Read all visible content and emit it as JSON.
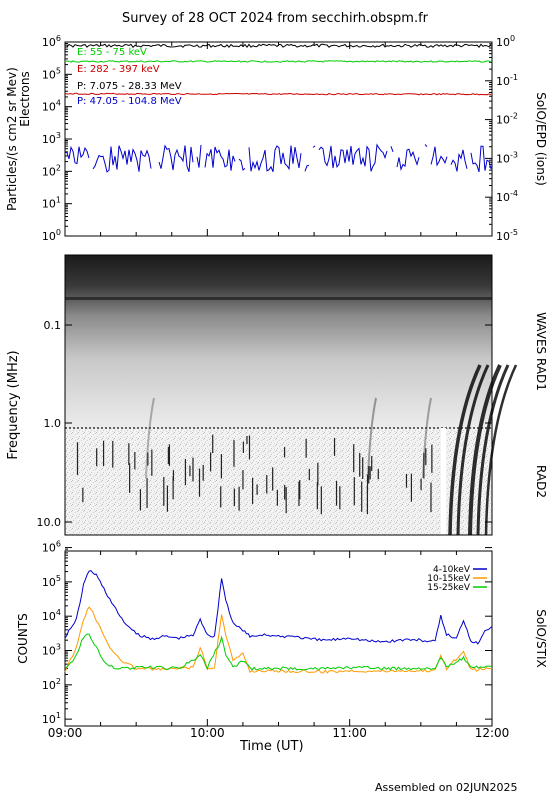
{
  "header": {
    "title": "Survey of 28 OCT 2024 from secchirh.obspm.fr"
  },
  "footer": {
    "assembled": "Assembled on 02JUN2025"
  },
  "x_axis": {
    "label": "Time (UT)",
    "ticks": [
      "09:00",
      "10:00",
      "11:00",
      "12:00"
    ],
    "range_hours": [
      9,
      12
    ]
  },
  "chart_data": [
    {
      "type": "line",
      "name": "particles",
      "ylabel": "Particles/(s cm2 sr Mev)",
      "ylabel2": "Electrons",
      "right_label": "SolO/EPD (ions)",
      "y_scale": "log",
      "ylim": [
        1,
        1000000
      ],
      "y_ticks": [
        "10^0",
        "10^1",
        "10^2",
        "10^3",
        "10^4",
        "10^5",
        "10^6"
      ],
      "y2_scale": "log",
      "y2lim": [
        1e-05,
        1
      ],
      "y2_ticks": [
        "10^-5",
        "10^-4",
        "10^-3",
        "10^-2",
        "10^-1",
        "10^0"
      ],
      "series": [
        {
          "name": "E: 55 - 75 keV",
          "color": "#00cc00",
          "values_approx": 250000
        },
        {
          "name": "E: 282 - 397 keV",
          "color": "#cc0000",
          "values_approx": 25000
        },
        {
          "name": "P: 7.075 - 28.33 MeV",
          "color": "#000000",
          "axis": "right",
          "values_approx": 0.8
        },
        {
          "name": "P: 47.05 - 104.8 MeV",
          "color": "#0000cc",
          "axis": "right",
          "values_approx": 0.001
        }
      ]
    },
    {
      "type": "heatmap",
      "name": "radio-spectrogram",
      "ylabel": "Frequency (MHz)",
      "y_scale": "log",
      "y_ticks": [
        "0.1",
        "1.0",
        "10.0"
      ],
      "right_label_top": "WAVES RAD1",
      "right_label_bottom": "RAD2",
      "colormap": "grayscale-inverted"
    },
    {
      "type": "line",
      "name": "stix",
      "ylabel": "COUNTS",
      "right_label": "SolO/STIX",
      "y_scale": "log",
      "ylim": [
        1,
        10000000
      ],
      "y_ticks": [
        "10^1",
        "10^2",
        "10^3",
        "10^4",
        "10^5",
        "10^6"
      ],
      "series": [
        {
          "name": "4-10keV",
          "color": "#0000cc",
          "points": [
            [
              9.0,
              2500
            ],
            [
              9.08,
              8000
            ],
            [
              9.13,
              80000
            ],
            [
              9.17,
              220000
            ],
            [
              9.22,
              160000
            ],
            [
              9.3,
              40000
            ],
            [
              9.4,
              8000
            ],
            [
              9.5,
              3000
            ],
            [
              9.6,
              2200
            ],
            [
              9.7,
              2600
            ],
            [
              9.8,
              2300
            ],
            [
              9.9,
              2800
            ],
            [
              9.95,
              8000
            ],
            [
              10.0,
              3000
            ],
            [
              10.05,
              2500
            ],
            [
              10.1,
              130000
            ],
            [
              10.13,
              30000
            ],
            [
              10.18,
              6000
            ],
            [
              10.25,
              4000
            ],
            [
              10.3,
              2500
            ],
            [
              10.4,
              3000
            ],
            [
              10.5,
              2500
            ],
            [
              10.6,
              2700
            ],
            [
              10.7,
              2200
            ],
            [
              10.8,
              2000
            ],
            [
              10.9,
              2100
            ],
            [
              11.0,
              2400
            ],
            [
              11.1,
              2000
            ],
            [
              11.2,
              1800
            ],
            [
              11.3,
              1900
            ],
            [
              11.4,
              2100
            ],
            [
              11.5,
              2000
            ],
            [
              11.6,
              1800
            ],
            [
              11.64,
              10000
            ],
            [
              11.68,
              3000
            ],
            [
              11.75,
              2200
            ],
            [
              11.8,
              8000
            ],
            [
              11.85,
              2000
            ],
            [
              11.9,
              1600
            ],
            [
              11.95,
              4000
            ],
            [
              12.0,
              5000
            ]
          ]
        },
        {
          "name": "10-15keV",
          "color": "#ff9900",
          "points": [
            [
              9.0,
              250
            ],
            [
              9.08,
              1200
            ],
            [
              9.13,
              8000
            ],
            [
              9.17,
              20000
            ],
            [
              9.22,
              8000
            ],
            [
              9.3,
              1500
            ],
            [
              9.4,
              500
            ],
            [
              9.5,
              300
            ],
            [
              9.7,
              280
            ],
            [
              9.9,
              320
            ],
            [
              9.95,
              1200
            ],
            [
              10.0,
              300
            ],
            [
              10.05,
              300
            ],
            [
              10.1,
              12000
            ],
            [
              10.13,
              3000
            ],
            [
              10.18,
              500
            ],
            [
              10.25,
              800
            ],
            [
              10.3,
              250
            ],
            [
              10.4,
              260
            ],
            [
              10.6,
              250
            ],
            [
              10.8,
              240
            ],
            [
              11.0,
              260
            ],
            [
              11.2,
              250
            ],
            [
              11.4,
              260
            ],
            [
              11.6,
              260
            ],
            [
              11.64,
              800
            ],
            [
              11.68,
              300
            ],
            [
              11.8,
              900
            ],
            [
              11.85,
              270
            ],
            [
              12.0,
              300
            ]
          ]
        },
        {
          "name": "15-25keV",
          "color": "#00cc00",
          "points": [
            [
              9.0,
              300
            ],
            [
              9.08,
              700
            ],
            [
              9.13,
              2500
            ],
            [
              9.17,
              3000
            ],
            [
              9.22,
              1200
            ],
            [
              9.3,
              350
            ],
            [
              9.4,
              300
            ],
            [
              9.6,
              320
            ],
            [
              9.8,
              300
            ],
            [
              9.95,
              700
            ],
            [
              10.0,
              320
            ],
            [
              10.1,
              2200
            ],
            [
              10.13,
              800
            ],
            [
              10.18,
              320
            ],
            [
              10.25,
              500
            ],
            [
              10.3,
              300
            ],
            [
              10.6,
              300
            ],
            [
              10.8,
              300
            ],
            [
              11.0,
              320
            ],
            [
              11.3,
              300
            ],
            [
              11.6,
              310
            ],
            [
              11.64,
              600
            ],
            [
              11.68,
              320
            ],
            [
              11.8,
              600
            ],
            [
              11.85,
              320
            ],
            [
              12.0,
              330
            ]
          ]
        }
      ]
    }
  ]
}
